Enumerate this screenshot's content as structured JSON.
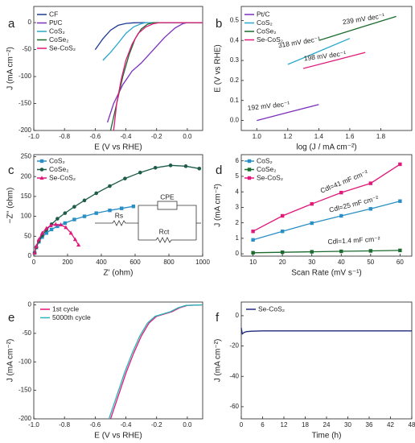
{
  "chart_data": [
    {
      "type": "line",
      "label": "a",
      "xlabel": "E (V vs RHE)",
      "ylabel": "J (mA cm⁻²)",
      "xlim": [
        -1.0,
        0.1
      ],
      "xticks": [
        {
          "value": -1.0,
          "label": "-1.0"
        },
        -0.8,
        -0.6,
        -0.4,
        -0.2,
        {
          "value": 0,
          "label": "0.0"
        }
      ],
      "ylim": [
        -200,
        30
      ],
      "yticks": [
        -200,
        -150,
        -100,
        -50,
        0
      ],
      "series": [
        {
          "name": "CF",
          "color": "#1f3a93",
          "x": [
            -0.6,
            -0.55,
            -0.5,
            -0.45,
            -0.4,
            -0.35,
            -0.3,
            0.1
          ],
          "values": [
            -50,
            -30,
            -14,
            -5,
            -1.5,
            -0.3,
            0,
            0
          ]
        },
        {
          "name": "Pt/C",
          "color": "#7b2fbf",
          "x": [
            -0.52,
            -0.48,
            -0.42,
            -0.36,
            -0.3,
            -0.22,
            -0.15,
            -0.08,
            -0.03,
            0,
            0.1
          ],
          "values": [
            -185,
            -150,
            -115,
            -90,
            -75,
            -50,
            -28,
            -10,
            -2,
            0,
            0
          ]
        },
        {
          "name": "CoS₂",
          "color": "#2aa7c9",
          "x": [
            -0.55,
            -0.5,
            -0.45,
            -0.4,
            -0.35,
            -0.3,
            -0.27,
            0.1
          ],
          "values": [
            -70,
            -55,
            -38,
            -20,
            -8,
            -2,
            0,
            0
          ]
        },
        {
          "name": "CoSe₂",
          "color": "#1a6b2e",
          "x": [
            -0.5,
            -0.46,
            -0.42,
            -0.38,
            -0.34,
            -0.3,
            -0.26,
            -0.22,
            0.1
          ],
          "values": [
            -200,
            -150,
            -100,
            -60,
            -30,
            -12,
            -3,
            0,
            0
          ]
        },
        {
          "name": "Se-CoS₂",
          "color": "#e0197a",
          "x": [
            -0.48,
            -0.46,
            -0.43,
            -0.4,
            -0.36,
            -0.32,
            -0.27,
            -0.22,
            -0.18,
            0.1
          ],
          "values": [
            -200,
            -150,
            -105,
            -70,
            -40,
            -20,
            -8,
            -2,
            0,
            0
          ]
        }
      ]
    },
    {
      "type": "line",
      "label": "b",
      "xlabel": "log (J / mA cm⁻²)",
      "ylabel": "E (V vs RHE)",
      "xlim": [
        0.9,
        2.0
      ],
      "xticks": [
        {
          "value": 1.0,
          "label": "1.0"
        },
        1.2,
        1.4,
        1.6,
        1.8
      ],
      "ylim": [
        -0.05,
        0.57
      ],
      "yticks": [
        {
          "value": 0,
          "label": "0.0"
        },
        0.1,
        0.2,
        0.3,
        0.4,
        0.5
      ],
      "series": [
        {
          "name": "Pt/C",
          "color": "#7b2fbf",
          "x": [
            1.0,
            1.2,
            1.4
          ],
          "values": [
            0.0,
            0.04,
            0.08
          ]
        },
        {
          "name": "CoS₂",
          "color": "#2aa7c9",
          "x": [
            1.2,
            1.4,
            1.6
          ],
          "values": [
            0.28,
            0.345,
            0.41
          ]
        },
        {
          "name": "CoSe₂",
          "color": "#1a6b2e",
          "x": [
            1.4,
            1.65,
            1.9
          ],
          "values": [
            0.4,
            0.46,
            0.52
          ]
        },
        {
          "name": "Se-CoS₂",
          "color": "#e0197a",
          "x": [
            1.3,
            1.5,
            1.7
          ],
          "values": [
            0.26,
            0.3,
            0.34
          ]
        }
      ],
      "annotations": [
        "239 mV dec⁻¹",
        "318 mV dec⁻¹",
        "198 mV dec⁻¹",
        "192 mV dec⁻¹"
      ]
    },
    {
      "type": "line",
      "label": "c",
      "xlabel": "Z' (ohm)",
      "ylabel": "−Z'' (ohm)",
      "xlim": [
        0,
        1000
      ],
      "xticks": [
        0,
        200,
        400,
        600,
        800,
        1000
      ],
      "ylim": [
        0,
        255
      ],
      "yticks": [
        0,
        50,
        100,
        150,
        200,
        250
      ],
      "series": [
        {
          "name": "CoS₂",
          "color": "#2a8fc7",
          "marker": "square",
          "x": [
            5,
            15,
            30,
            50,
            75,
            105,
            140,
            185,
            240,
            300,
            370,
            450,
            520,
            590
          ],
          "values": [
            8,
            22,
            36,
            48,
            58,
            67,
            75,
            83,
            92,
            100,
            108,
            115,
            120,
            125
          ]
        },
        {
          "name": "CoSe₂",
          "color": "#1d5c4a",
          "marker": "circle",
          "x": [
            5,
            15,
            30,
            50,
            75,
            105,
            140,
            185,
            240,
            300,
            370,
            450,
            540,
            630,
            720,
            810,
            900,
            980
          ],
          "values": [
            8,
            22,
            38,
            52,
            66,
            80,
            94,
            108,
            124,
            140,
            158,
            176,
            195,
            210,
            222,
            228,
            226,
            220
          ]
        },
        {
          "name": "Se-CoS₂",
          "color": "#e0197a",
          "marker": "triangle",
          "x": [
            5,
            15,
            30,
            50,
            75,
            100,
            130,
            160,
            190,
            220,
            245,
            265
          ],
          "values": [
            8,
            25,
            42,
            58,
            70,
            77,
            80,
            79,
            72,
            58,
            42,
            28
          ]
        }
      ],
      "annotations": [
        "CPE",
        "Rs",
        "Rct"
      ]
    },
    {
      "type": "line",
      "label": "d",
      "xlabel": "Scan Rate (mV s⁻¹)",
      "ylabel": "J (mA cm⁻²)",
      "xlim": [
        6,
        64
      ],
      "xticks": [
        10,
        20,
        30,
        40,
        50,
        60
      ],
      "ylim": [
        -0.15,
        6.4
      ],
      "yticks": [
        0,
        1,
        2,
        3,
        4,
        5,
        6
      ],
      "series": [
        {
          "name": "CoS₂",
          "color": "#2a8fc7",
          "marker": "square",
          "x": [
            10,
            20,
            30,
            40,
            50,
            60
          ],
          "values": [
            0.9,
            1.45,
            1.98,
            2.45,
            2.9,
            3.4
          ]
        },
        {
          "name": "CoSe₂",
          "color": "#1a6b2e",
          "marker": "square",
          "x": [
            10,
            20,
            30,
            40,
            50,
            60
          ],
          "values": [
            0.07,
            0.1,
            0.13,
            0.16,
            0.19,
            0.22
          ]
        },
        {
          "name": "Se-CoS₂",
          "color": "#e0197a",
          "marker": "square",
          "x": [
            10,
            20,
            30,
            40,
            50,
            60
          ],
          "values": [
            1.45,
            2.45,
            3.22,
            3.95,
            4.55,
            5.78
          ]
        }
      ],
      "annotations": [
        "Cdl=41 mF cm⁻²",
        "Cdl=25 mF cm⁻²",
        "Cdl=1.4 mF cm⁻²"
      ]
    },
    {
      "type": "line",
      "label": "e",
      "xlabel": "E (V vs RHE)",
      "ylabel": "J (mA cm⁻²)",
      "xlim": [
        -1.0,
        0.1
      ],
      "xticks": [
        {
          "value": -1.0,
          "label": "-1.0"
        },
        -0.8,
        -0.6,
        -0.4,
        -0.2,
        {
          "value": 0,
          "label": "0.0"
        }
      ],
      "ylim": [
        -200,
        5
      ],
      "yticks": [
        -200,
        -150,
        -100,
        -50,
        0
      ],
      "series": [
        {
          "name": "1st cycle",
          "color": "#e0197a",
          "x": [
            -0.5,
            -0.45,
            -0.4,
            -0.35,
            -0.3,
            -0.25,
            -0.2,
            -0.15,
            -0.1,
            -0.05,
            0,
            0.1
          ],
          "values": [
            -200,
            -160,
            -120,
            -85,
            -55,
            -32,
            -20,
            -16,
            -12,
            -5,
            -1,
            0
          ]
        },
        {
          "name": "5000th cycle",
          "color": "#27b3b8",
          "x": [
            -0.51,
            -0.46,
            -0.41,
            -0.36,
            -0.31,
            -0.26,
            -0.21,
            -0.16,
            -0.11,
            -0.06,
            -0.01,
            0.1
          ],
          "values": [
            -200,
            -160,
            -120,
            -85,
            -55,
            -32,
            -20,
            -16,
            -12,
            -5,
            -1,
            0
          ]
        }
      ]
    },
    {
      "type": "line",
      "label": "f",
      "xlabel": "Time (h)",
      "ylabel": "J (mA cm⁻²)",
      "xlim": [
        0,
        48
      ],
      "xticks": [
        0,
        6,
        12,
        18,
        24,
        30,
        36,
        42,
        48
      ],
      "ylim": [
        -68,
        9
      ],
      "yticks": [
        -60,
        -40,
        -20,
        0
      ],
      "series": [
        {
          "name": "Se-CoS₂",
          "color": "#1f2a7a",
          "x": [
            0,
            0.3,
            0.8,
            1.5,
            3,
            6,
            12,
            18,
            24,
            30,
            36,
            42,
            48
          ],
          "values": [
            -8,
            -12,
            -11,
            -10.5,
            -10.2,
            -10,
            -10,
            -10,
            -10,
            -10,
            -10,
            -10,
            -10
          ]
        }
      ]
    }
  ]
}
